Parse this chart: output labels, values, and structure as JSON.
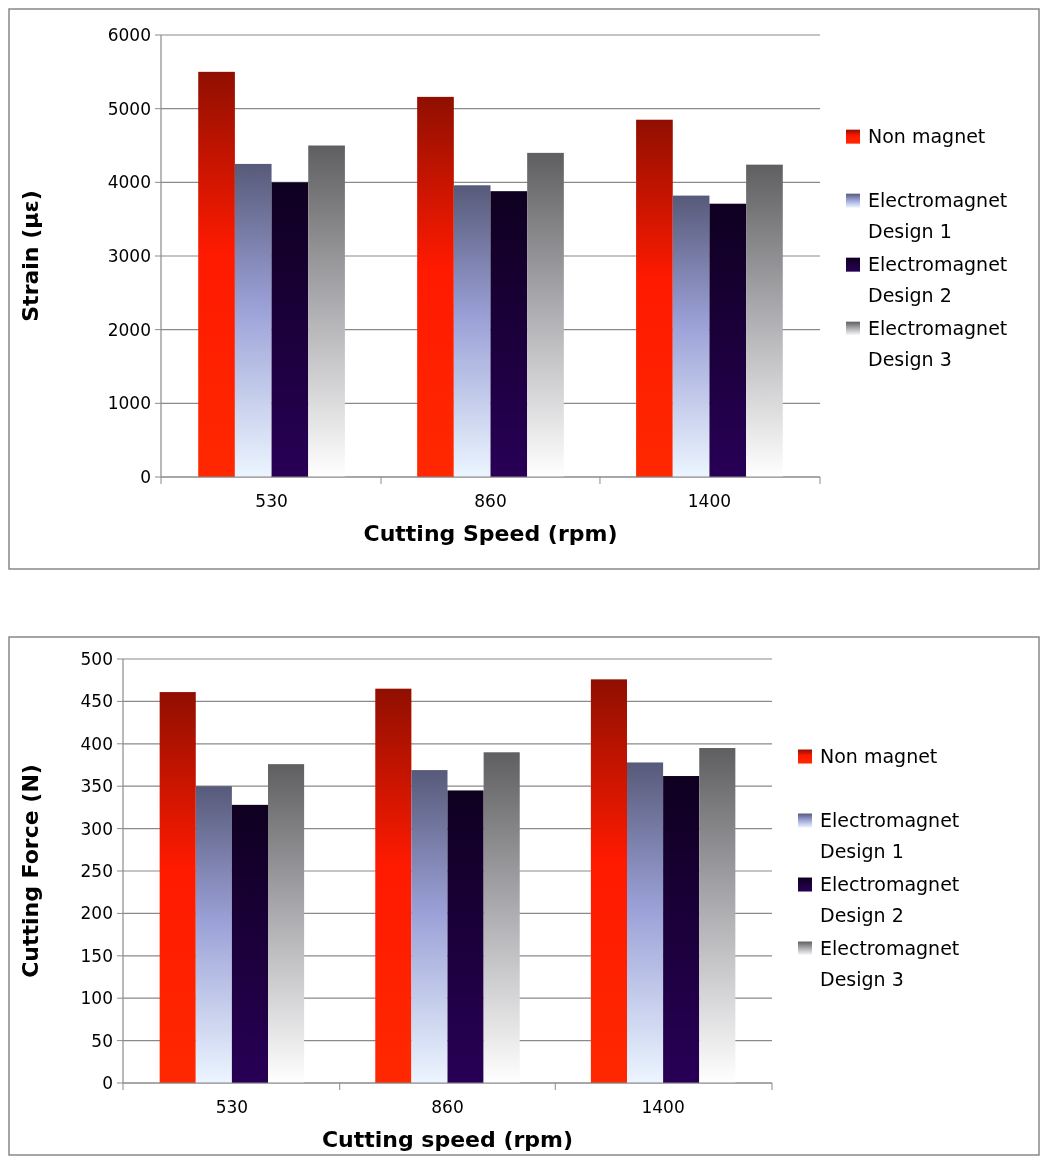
{
  "chart_data": [
    {
      "type": "bar",
      "xlabel": "Cutting Speed (rpm)",
      "ylabel": "Strain (με)",
      "categories": [
        "530",
        "860",
        "1400"
      ],
      "ylim": [
        0,
        6000
      ],
      "yticks": [
        0,
        1000,
        2000,
        3000,
        4000,
        5000,
        6000
      ],
      "grid": "y",
      "legend": "right",
      "series": [
        {
          "name": "Non magnet",
          "color": "#ff1a00",
          "values": [
            5500,
            5160,
            4850
          ]
        },
        {
          "name": "Electromagnet Design 1",
          "color": "#9aa0d6",
          "values": [
            4250,
            3960,
            3820
          ]
        },
        {
          "name": "Electromagnet Design 2",
          "color": "#1a0038",
          "values": [
            4000,
            3880,
            3710
          ]
        },
        {
          "name": "Electromagnet Design 3",
          "color": "#a8a8ac",
          "values": [
            4500,
            4400,
            4240
          ]
        }
      ]
    },
    {
      "type": "bar",
      "xlabel": "Cutting speed (rpm)",
      "ylabel": "Cutting Force (N)",
      "categories": [
        "530",
        "860",
        "1400"
      ],
      "ylim": [
        0,
        500
      ],
      "yticks": [
        0,
        50,
        100,
        150,
        200,
        250,
        300,
        350,
        400,
        450,
        500
      ],
      "grid": "y",
      "legend": "right",
      "series": [
        {
          "name": "Non magnet",
          "color": "#ff1a00",
          "values": [
            461,
            465,
            476
          ]
        },
        {
          "name": "Electromagnet Design 1",
          "color": "#9aa0d6",
          "values": [
            350,
            369,
            378
          ]
        },
        {
          "name": "Electromagnet Design 2",
          "color": "#1a0038",
          "values": [
            328,
            345,
            362
          ]
        },
        {
          "name": "Electromagnet Design 3",
          "color": "#a8a8ac",
          "values": [
            376,
            390,
            395
          ]
        }
      ]
    }
  ]
}
